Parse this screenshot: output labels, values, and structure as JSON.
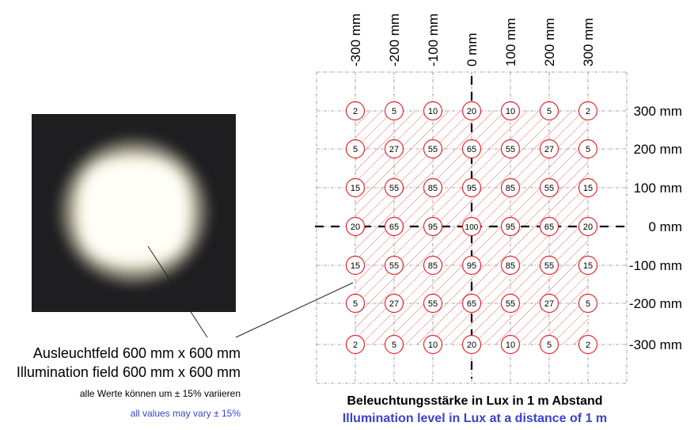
{
  "photo": {
    "caption_de": "Ausleuchtfeld 600 mm x 600 mm",
    "caption_en": "Illumination field 600 mm x 600 mm",
    "variance_de": "alle Werte können um ± 15% variieren",
    "variance_en": "all values may vary ± 15%"
  },
  "grid": {
    "x_labels": [
      "-300 mm",
      "-200 mm",
      "-100 mm",
      "0 mm",
      "100 mm",
      "200 mm",
      "300 mm"
    ],
    "y_labels": [
      "300 mm",
      "200 mm",
      "100 mm",
      "0 mm",
      "-100 mm",
      "-200 mm",
      "-300 mm"
    ],
    "values": [
      [
        2,
        5,
        10,
        20,
        10,
        5,
        2
      ],
      [
        5,
        27,
        55,
        65,
        55,
        27,
        5
      ],
      [
        15,
        55,
        85,
        95,
        85,
        55,
        15
      ],
      [
        20,
        65,
        95,
        100,
        95,
        65,
        20
      ],
      [
        15,
        55,
        85,
        95,
        85,
        55,
        15
      ],
      [
        5,
        27,
        55,
        65,
        55,
        27,
        5
      ],
      [
        2,
        5,
        10,
        20,
        10,
        5,
        2
      ]
    ],
    "caption_de": "Beleuchtungsstärke in Lux in 1 m Abstand",
    "caption_en": "Illumination level in Lux at a distance of 1 m"
  },
  "colors": {
    "circle": "#e4262b",
    "hatch": "#ee6a6a",
    "accent_blue": "#3b43c9"
  }
}
